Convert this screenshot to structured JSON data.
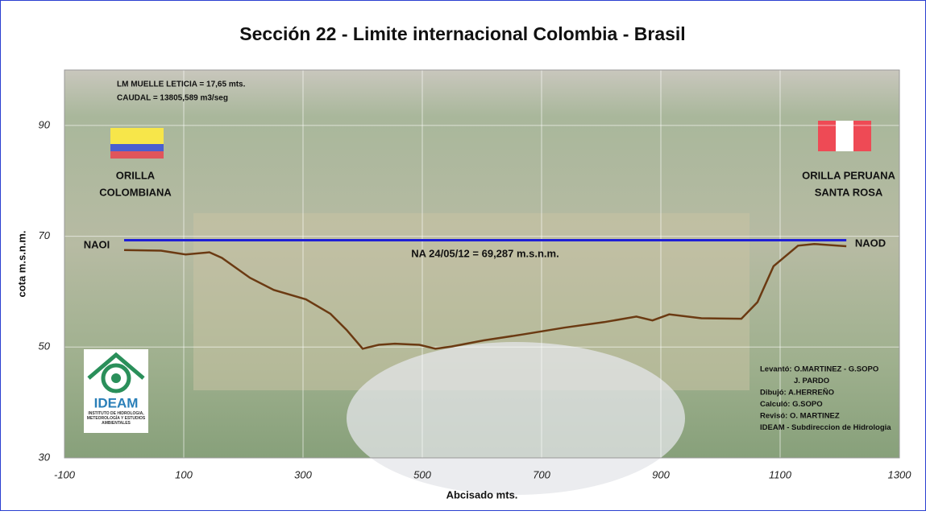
{
  "chart_data": {
    "type": "line",
    "title": "Sección 22 - Limite internacional Colombia - Brasil",
    "x_label": "Abcisado mts.",
    "y_label": "cota m.s.n.m.",
    "xlim": [
      -100,
      1300
    ],
    "ylim": [
      30,
      100
    ],
    "xticks": [
      -100,
      100,
      300,
      500,
      700,
      900,
      1100,
      1300
    ],
    "yticks": [
      30,
      50,
      70,
      90
    ],
    "grid": true,
    "series": [
      {
        "color": "#1f1fd6",
        "x": [
          0,
          1211
        ],
        "values": [
          69.287,
          69.287
        ]
      },
      {
        "color": "#6b3a12",
        "x": [
          0,
          62,
          103,
          143,
          164,
          211,
          251,
          305,
          346,
          373,
          400,
          427,
          454,
          495,
          522,
          549,
          603,
          670,
          738,
          805,
          859,
          886,
          914,
          968,
          1035,
          1062,
          1089,
          1130,
          1157,
          1211
        ],
        "values": [
          67.5,
          67.4,
          66.7,
          67.1,
          66.1,
          62.5,
          60.3,
          58.6,
          56.0,
          53.1,
          49.7,
          50.4,
          50.6,
          50.4,
          49.7,
          50.1,
          51.2,
          52.3,
          53.5,
          54.5,
          55.5,
          54.8,
          55.9,
          55.2,
          55.1,
          58.1,
          64.6,
          68.3,
          68.6,
          68.2
        ]
      }
    ],
    "annotations": [
      "LM MUELLE LETICIA = 17,65 mts.",
      "CAUDAL = 13805,589 m3/seg",
      "ORILLA",
      "COLOMBIANA",
      "ORILLA PERUANA",
      "SANTA ROSA",
      "NAOI",
      "NAOD",
      "NA 24/05/12 = 69,287 m.s.n.m."
    ],
    "credits": [
      "Levantó: O.MARTINEZ - G.SOPO",
      "J. PARDO",
      "Dibujó:    A.HERREÑO",
      "Calculó:   G.SOPO",
      "Revisó:    O. MARTINEZ",
      "IDEAM - Subdireccion de Hidrologia"
    ],
    "logo": {
      "name": "IDEAM",
      "subtitle": "INSTITUTO DE HIDROLOGÍA, METEOROLOGÍA Y ESTUDIOS AMBIENTALES"
    }
  }
}
